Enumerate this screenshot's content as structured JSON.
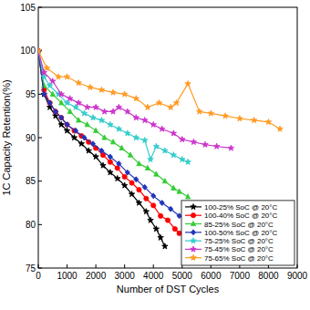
{
  "chart_data": {
    "type": "line",
    "x_label": "Number of DST Cycles",
    "y_label": "1C Capacity Retention(%)",
    "xlim": [
      0,
      9000
    ],
    "xticks": [
      0,
      1000,
      2000,
      3000,
      4000,
      5000,
      6000,
      7000,
      8000,
      9000
    ],
    "ylim": [
      75,
      105
    ],
    "yticks": [
      75,
      80,
      85,
      90,
      95,
      100,
      105
    ],
    "grid": false,
    "legend": "lower right",
    "series": [
      {
        "name": "100-25% SoC @ 20°C",
        "color": "#000000",
        "marker": "star",
        "x": [
          0,
          200,
          400,
          600,
          800,
          1000,
          1250,
          1500,
          1750,
          2000,
          2250,
          2500,
          2750,
          3000,
          3250,
          3500,
          3750,
          3900,
          4100,
          4250,
          4400
        ],
        "values": [
          100,
          95,
          93.5,
          92.5,
          91.5,
          90.8,
          90,
          89.3,
          88.5,
          87.8,
          86.8,
          86,
          85.3,
          84.5,
          83.5,
          82.5,
          81.5,
          80.5,
          79.5,
          78.5,
          77.5
        ]
      },
      {
        "name": "100-40% SoC @ 20°C",
        "color": "#ff0000",
        "marker": "circle",
        "x": [
          0,
          200,
          400,
          600,
          800,
          1000,
          1250,
          1500,
          1750,
          2000,
          2250,
          2500,
          2750,
          3000,
          3250,
          3500,
          3750,
          4000,
          4250,
          4500,
          4750,
          4900
        ],
        "values": [
          100,
          95.5,
          94,
          93,
          92.3,
          91.5,
          90.8,
          90.2,
          89.5,
          88.8,
          88,
          87.2,
          86.5,
          85.5,
          84.8,
          84,
          83,
          82.2,
          81,
          80.5,
          79.5,
          79
        ]
      },
      {
        "name": "85-25% SoC @ 20°C",
        "color": "#33cc33",
        "marker": "triangle",
        "x": [
          0,
          200,
          500,
          800,
          1100,
          1400,
          1700,
          2000,
          2300,
          2600,
          2900,
          3200,
          3500,
          3800,
          4100,
          4400,
          4700,
          4900,
          5200
        ],
        "values": [
          100,
          96,
          95,
          94,
          93,
          92,
          91.5,
          90.8,
          90,
          89.5,
          88.8,
          88,
          87,
          86.5,
          85.8,
          85,
          84.2,
          83.8,
          83.2
        ]
      },
      {
        "name": "100-50% SoC @ 20°C",
        "color": "#2233bb",
        "marker": "diamond",
        "x": [
          0,
          200,
          400,
          600,
          800,
          1000,
          1300,
          1600,
          1900,
          2200,
          2500,
          2800,
          3100,
          3400,
          3700,
          4000,
          4300,
          4600,
          4900,
          5200,
          5600
        ],
        "values": [
          100,
          95,
          94,
          93,
          92.3,
          91.5,
          90.8,
          90,
          89.3,
          88.5,
          87.8,
          87,
          86,
          85.2,
          84.3,
          83.3,
          82.5,
          81.8,
          81,
          80.5,
          80
        ]
      },
      {
        "name": "75-25% SoC @ 20°C",
        "color": "#33cccc",
        "marker": "star",
        "x": [
          0,
          200,
          400,
          700,
          1000,
          1300,
          1600,
          1900,
          2200,
          2500,
          2800,
          3100,
          3400,
          3700,
          3900,
          4100,
          4400,
          4700,
          5000,
          5200
        ],
        "values": [
          100,
          97,
          96,
          95,
          94,
          93.5,
          92.8,
          92.3,
          92,
          91.5,
          91,
          90.5,
          90,
          89.7,
          87.5,
          89,
          88.5,
          88,
          87.5,
          87.2
        ]
      },
      {
        "name": "75-45% SoC @ 20°C",
        "color": "#cc33cc",
        "marker": "star",
        "x": [
          0,
          200,
          500,
          800,
          1100,
          1400,
          1700,
          2000,
          2300,
          2600,
          2800,
          3100,
          3400,
          3700,
          4000,
          4300,
          4700,
          5000,
          5400,
          5800,
          6200,
          6700
        ],
        "values": [
          100,
          97.5,
          96.5,
          95,
          94.5,
          94,
          93.5,
          93.5,
          93,
          93,
          93.5,
          93,
          92.3,
          92,
          91.5,
          91,
          90.5,
          89.8,
          89.5,
          89.2,
          89,
          88.8
        ]
      },
      {
        "name": "75-65% SoC @ 20°C",
        "color": "#ff9922",
        "marker": "star",
        "x": [
          0,
          300,
          700,
          1000,
          1400,
          1800,
          2200,
          2600,
          3000,
          3400,
          3800,
          4200,
          4600,
          4800,
          5200,
          5600,
          6000,
          6500,
          7000,
          7500,
          8000,
          8400
        ],
        "values": [
          100,
          98,
          97,
          97,
          96.3,
          95.8,
          95.5,
          95.2,
          95,
          94.5,
          93.5,
          94,
          93.5,
          94,
          96.2,
          93,
          92.8,
          92.5,
          92.2,
          92,
          91.8,
          91
        ]
      }
    ]
  }
}
